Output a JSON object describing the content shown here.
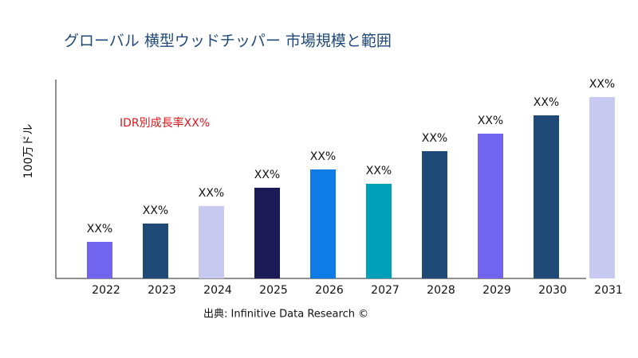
{
  "chart_data": {
    "type": "bar",
    "title": "グローバル 横型ウッドチッパー 市場規模と範囲",
    "y_label": "100万ドル",
    "annotation": "IDR別成長率XX%",
    "source": "出典: Infinitive Data Research ©",
    "categories": [
      "2022",
      "2023",
      "2024",
      "2025",
      "2026",
      "2027",
      "2028",
      "2029",
      "2030",
      "2031"
    ],
    "values": [
      46,
      69,
      91,
      114,
      137,
      119,
      160,
      182,
      205,
      228
    ],
    "value_labels": [
      "XX%",
      "XX%",
      "XX%",
      "XX%",
      "XX%",
      "XX%",
      "XX%",
      "XX%",
      "XX%",
      "XX%"
    ],
    "colors": [
      "#7165f0",
      "#1f4a78",
      "#c8c9f0",
      "#1c1a57",
      "#0f7be6",
      "#00a0b8",
      "#1f4a78",
      "#7165f0",
      "#1f4a78",
      "#c8c9f0"
    ],
    "ylim": [
      0,
      250
    ]
  }
}
